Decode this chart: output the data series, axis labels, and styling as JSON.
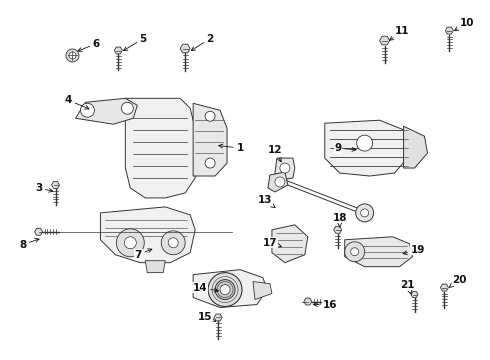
{
  "background_color": "#ffffff",
  "fig_width": 4.9,
  "fig_height": 3.6,
  "dpi": 100,
  "line_color": "#333333",
  "label_fontsize": 7.5
}
